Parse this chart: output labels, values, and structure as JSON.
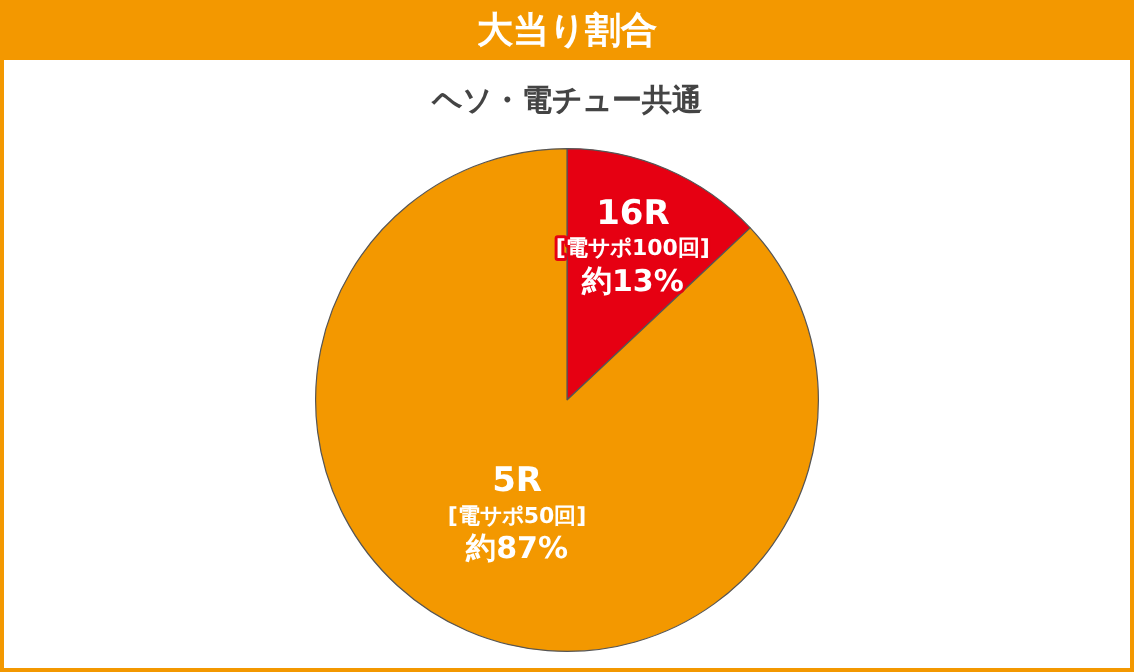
{
  "chart_data": {
    "type": "pie",
    "title": "大当り割合",
    "subtitle": "ヘソ・電チュー共通",
    "categories": [
      "16R\n[電サポ100回]",
      "5R\n[電サポ50回]"
    ],
    "values": [
      13,
      87
    ],
    "value_labels": [
      "約13%",
      "約87%"
    ],
    "colors": [
      "#e60012",
      "#f39800"
    ],
    "legend": false
  }
}
